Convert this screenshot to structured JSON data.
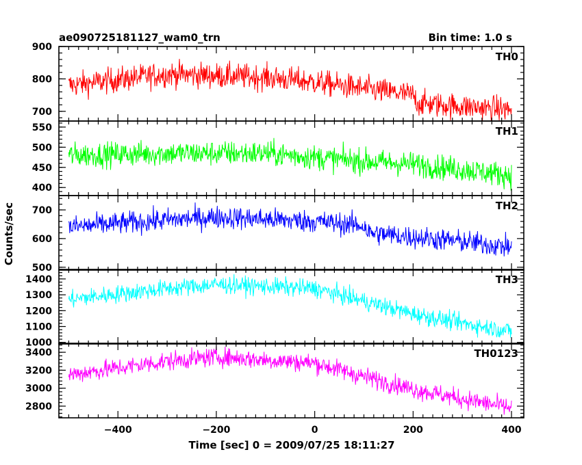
{
  "chart_data": {
    "type": "line",
    "title": "ae090725181127_wam0_trn",
    "bin_time": "Bin time: 1.0 s",
    "xlabel": "Time [sec] 0 = 2009/07/25 18:11:27",
    "ylabel": "Counts/sec",
    "xlim": [
      -520,
      425
    ],
    "x_data_range": [
      -500,
      400
    ],
    "xticks": [
      -400,
      -200,
      0,
      200,
      400
    ],
    "grid": false,
    "panels": [
      {
        "name": "TH0",
        "color": "#ff0000",
        "ylim": [
          670,
          900
        ],
        "yticks": [
          700,
          800,
          900
        ],
        "trend": [
          [
            -500,
            780
          ],
          [
            -300,
            815
          ],
          [
            -100,
            805
          ],
          [
            0,
            790
          ],
          [
            100,
            770
          ],
          [
            200,
            750
          ],
          [
            210,
            725
          ],
          [
            300,
            715
          ],
          [
            400,
            705
          ]
        ],
        "noise": 28
      },
      {
        "name": "TH1",
        "color": "#00ff00",
        "ylim": [
          380,
          565
        ],
        "yticks": [
          400,
          450,
          500,
          550
        ],
        "trend": [
          [
            -500,
            480
          ],
          [
            -300,
            485
          ],
          [
            -100,
            485
          ],
          [
            0,
            475
          ],
          [
            100,
            465
          ],
          [
            200,
            458
          ],
          [
            300,
            445
          ],
          [
            400,
            430
          ]
        ],
        "noise": 22
      },
      {
        "name": "TH2",
        "color": "#0000ff",
        "ylim": [
          490,
          750
        ],
        "yticks": [
          500,
          600,
          700
        ],
        "trend": [
          [
            -500,
            640
          ],
          [
            -300,
            665
          ],
          [
            -200,
            675
          ],
          [
            0,
            660
          ],
          [
            100,
            645
          ],
          [
            110,
            620
          ],
          [
            200,
            605
          ],
          [
            300,
            590
          ],
          [
            400,
            570
          ]
        ],
        "noise": 28
      },
      {
        "name": "TH3",
        "color": "#00ffff",
        "ylim": [
          990,
          1460
        ],
        "yticks": [
          1000,
          1100,
          1200,
          1300,
          1400
        ],
        "trend": [
          [
            -500,
            1270
          ],
          [
            -300,
            1340
          ],
          [
            -200,
            1365
          ],
          [
            0,
            1340
          ],
          [
            100,
            1260
          ],
          [
            200,
            1180
          ],
          [
            300,
            1120
          ],
          [
            400,
            1070
          ]
        ],
        "noise": 40
      },
      {
        "name": "TH0123",
        "color": "#ff00ff",
        "ylim": [
          2670,
          3500
        ],
        "yticks": [
          2800,
          3000,
          3200,
          3400
        ],
        "trend": [
          [
            -500,
            3150
          ],
          [
            -300,
            3300
          ],
          [
            -200,
            3350
          ],
          [
            0,
            3280
          ],
          [
            100,
            3130
          ],
          [
            200,
            2990
          ],
          [
            300,
            2880
          ],
          [
            400,
            2780
          ]
        ],
        "noise": 75
      }
    ]
  }
}
